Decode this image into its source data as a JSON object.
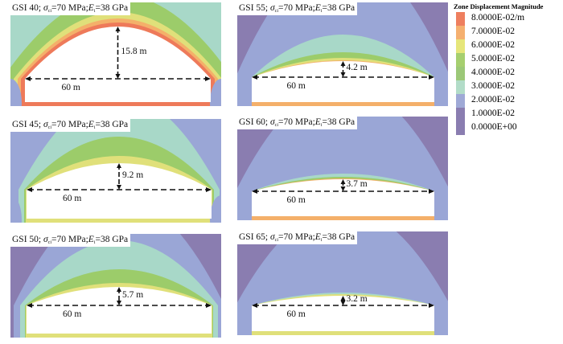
{
  "panels": [
    {
      "gsi": "GSI 40",
      "sigma": "σ",
      "sigma_sub": "ci",
      "sigma_val": "=70 MPa;",
      "e": "E",
      "e_sub": "i",
      "e_val": "=38 GPa",
      "height_label": "15.8 m",
      "width_label": "60 m"
    },
    {
      "gsi": "GSI 45",
      "sigma": "σ",
      "sigma_sub": "ci",
      "sigma_val": "=70 MPa;",
      "e": "E",
      "e_sub": "i",
      "e_val": "=38 GPa",
      "height_label": "9.2 m",
      "width_label": "60 m"
    },
    {
      "gsi": "GSI 50",
      "sigma": "σ",
      "sigma_sub": "ci",
      "sigma_val": "=70 MPa;",
      "e": "E",
      "e_sub": "i",
      "e_val": "=38 GPa",
      "height_label": "5.7 m",
      "width_label": "60 m"
    },
    {
      "gsi": "GSI 55",
      "sigma": "σ",
      "sigma_sub": "ci",
      "sigma_val": "=70 MPa;",
      "e": "E",
      "e_sub": "i",
      "e_val": "=38 GPa",
      "height_label": "4.2 m",
      "width_label": "60 m"
    },
    {
      "gsi": "GSI 60",
      "sigma": "σ",
      "sigma_sub": "ci",
      "sigma_val": "=70 MPa;",
      "e": "E",
      "e_sub": "i",
      "e_val": "=38 GPa",
      "height_label": "3.7 m",
      "width_label": "60 m"
    },
    {
      "gsi": "GSI 65",
      "sigma": "σ",
      "sigma_sub": "ci",
      "sigma_val": "=70 MPa;",
      "e": "E",
      "e_sub": "i",
      "e_val": "=38 GPa",
      "height_label": "3.2 m",
      "width_label": "60 m"
    }
  ],
  "legend": {
    "title": "Zone Displacement Magnitude",
    "items": [
      {
        "label": "8.0000E-02/m",
        "color": "#ee7f5f"
      },
      {
        "label": "7.0000E-02",
        "color": "#f5b070"
      },
      {
        "label": "6.0000E-02",
        "color": "#e6e67a"
      },
      {
        "label": "5.0000E-02",
        "color": "#a6cf6f"
      },
      {
        "label": "4.0000E-02",
        "color": "#9cc878"
      },
      {
        "label": "3.0000E-02",
        "color": "#b2dcc8"
      },
      {
        "label": "2.0000E-02",
        "color": "#9fa9d6"
      },
      {
        "label": "1.0000E-02",
        "color": "#8a7db0"
      },
      {
        "label": "0.0000E+00",
        "color": "#8a7db0"
      }
    ]
  }
}
